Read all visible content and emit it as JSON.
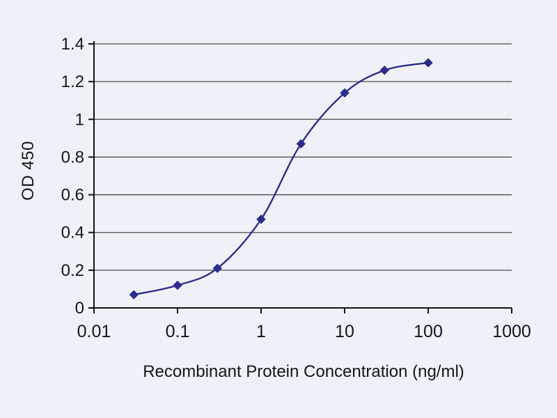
{
  "chart_data": {
    "type": "line",
    "title": "",
    "xlabel": "Recombinant Protein Concentration (ng/ml)",
    "ylabel": "OD 450",
    "x_scale": "log",
    "xlim": [
      0.01,
      1000
    ],
    "ylim": [
      0,
      1.4
    ],
    "x_ticks": [
      0.01,
      0.1,
      1,
      10,
      100,
      1000
    ],
    "x_tick_labels": [
      "0.01",
      "0.1",
      "1",
      "10",
      "100",
      "1000"
    ],
    "y_ticks": [
      0,
      0.2,
      0.4,
      0.6,
      0.8,
      1,
      1.2,
      1.4
    ],
    "y_tick_labels": [
      "0",
      "0.2",
      "0.4",
      "0.6",
      "0.8",
      "1",
      "1.2",
      "1.4"
    ],
    "grid": "horizontal",
    "legend": "none",
    "series": [
      {
        "name": "OD 450",
        "color": "#2c2c8c",
        "marker": "diamond",
        "x": [
          0.03,
          0.1,
          0.3,
          1,
          3,
          10,
          30,
          100
        ],
        "y": [
          0.07,
          0.12,
          0.21,
          0.47,
          0.87,
          1.14,
          1.26,
          1.3
        ]
      }
    ]
  },
  "colors": {
    "background": "#eef2f8",
    "axis": "#111111",
    "grid": "#4a4a4a",
    "tick_text": "#15151a"
  }
}
